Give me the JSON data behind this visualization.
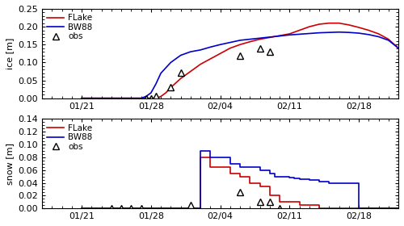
{
  "ice_flake_x": [
    21,
    22,
    23,
    24,
    25,
    26,
    27,
    28,
    28.3,
    28.6,
    29,
    29.5,
    30,
    31,
    32,
    33,
    34,
    35,
    36,
    37,
    38,
    39,
    40,
    41,
    42,
    43,
    44,
    45,
    46,
    47,
    48,
    49,
    50,
    51,
    52,
    53
  ],
  "ice_flake_y": [
    0.0,
    0.0,
    0.0,
    0.0,
    0.0,
    0.0,
    0.0,
    0.0,
    0.0,
    0.0,
    0.005,
    0.015,
    0.03,
    0.055,
    0.075,
    0.095,
    0.11,
    0.125,
    0.14,
    0.15,
    0.158,
    0.165,
    0.17,
    0.175,
    0.18,
    0.19,
    0.2,
    0.207,
    0.21,
    0.21,
    0.205,
    0.198,
    0.19,
    0.18,
    0.165,
    0.14
  ],
  "ice_bw88_x": [
    21,
    22,
    23,
    24,
    25,
    26,
    27,
    27.5,
    28,
    28.5,
    29,
    30,
    31,
    32,
    33,
    34,
    35,
    36,
    37,
    38,
    39,
    40,
    41,
    42,
    43,
    44,
    45,
    46,
    47,
    48,
    49,
    50,
    51,
    52,
    53
  ],
  "ice_bw88_y": [
    0.0,
    0.0,
    0.0,
    0.0,
    0.0,
    0.0,
    0.0,
    0.005,
    0.015,
    0.04,
    0.07,
    0.1,
    0.12,
    0.13,
    0.135,
    0.143,
    0.15,
    0.156,
    0.162,
    0.165,
    0.168,
    0.171,
    0.174,
    0.177,
    0.179,
    0.181,
    0.183,
    0.184,
    0.185,
    0.184,
    0.182,
    0.178,
    0.172,
    0.162,
    0.14
  ],
  "ice_obs_x": [
    27.5,
    28,
    28.5,
    30,
    31,
    37,
    39,
    40
  ],
  "ice_obs_y": [
    0.0,
    0.0,
    0.005,
    0.03,
    0.072,
    0.12,
    0.14,
    0.13
  ],
  "snow_flake_x": [
    21,
    22,
    23,
    24,
    25,
    26,
    27,
    28,
    29,
    30,
    31,
    32,
    32.9,
    33,
    33.5,
    34,
    35,
    36,
    37,
    38,
    39,
    40,
    40.5,
    41,
    42,
    43,
    44,
    45,
    46,
    47,
    48,
    49,
    50,
    51,
    52,
    53
  ],
  "snow_flake_y": [
    0.0,
    0.0,
    0.0,
    0.0,
    0.0,
    0.0,
    0.0,
    0.0,
    0.0,
    0.0,
    0.0,
    0.0,
    0.0,
    0.08,
    0.08,
    0.065,
    0.065,
    0.055,
    0.05,
    0.04,
    0.035,
    0.02,
    0.02,
    0.01,
    0.01,
    0.005,
    0.005,
    0.0,
    0.0,
    0.0,
    0.0,
    0.0,
    0.0,
    0.0,
    0.0,
    0.0
  ],
  "snow_bw88_x": [
    21,
    22,
    23,
    24,
    25,
    26,
    27,
    28,
    29,
    30,
    31,
    32,
    32.9,
    33,
    33.5,
    34,
    35,
    36,
    37,
    38,
    39,
    40,
    40.5,
    41,
    42,
    42.5,
    43,
    44,
    45,
    46,
    47,
    48,
    49,
    50,
    51,
    52,
    53
  ],
  "snow_bw88_y": [
    0.0,
    0.0,
    0.0,
    0.0,
    0.0,
    0.0,
    0.0,
    0.0,
    0.0,
    0.0,
    0.0,
    0.0,
    0.0,
    0.09,
    0.09,
    0.08,
    0.08,
    0.07,
    0.065,
    0.065,
    0.06,
    0.055,
    0.05,
    0.05,
    0.048,
    0.047,
    0.046,
    0.044,
    0.042,
    0.04,
    0.04,
    0.04,
    0.0,
    0.0,
    0.0,
    0.0,
    0.0
  ],
  "snow_obs_x": [
    24,
    25,
    26,
    27,
    32,
    37,
    39,
    40,
    41
  ],
  "snow_obs_y": [
    0.0,
    0.0,
    0.0,
    0.0,
    0.005,
    0.025,
    0.01,
    0.01,
    0.0
  ],
  "flake_color": "#cc0000",
  "bw88_color": "#0000cc",
  "obs_marker": "^",
  "obs_color": "black",
  "obs_markerfacecolor": "white",
  "obs_markersize": 6,
  "obs_markeredgewidth": 1.0,
  "ice_ylim": [
    0.0,
    0.25
  ],
  "ice_yticks": [
    0.0,
    0.05,
    0.1,
    0.15,
    0.2,
    0.25
  ],
  "snow_ylim": [
    0.0,
    0.14
  ],
  "snow_yticks": [
    0.0,
    0.02,
    0.04,
    0.06,
    0.08,
    0.1,
    0.12,
    0.14
  ],
  "xmin": 17,
  "xmax": 53,
  "xtick_pos": [
    21,
    28,
    35,
    42,
    49
  ],
  "xtick_labels": [
    "01/21",
    "01/28",
    "02/04",
    "02/11",
    "02/18"
  ],
  "ice_ylabel": "ice [m]",
  "snow_ylabel": "snow [m]",
  "linewidth": 1.2,
  "bg_color": "#ffffff",
  "fig_bg": "#ffffff",
  "legend_fontsize": 7.5,
  "tick_fontsize": 8,
  "ylabel_fontsize": 8
}
